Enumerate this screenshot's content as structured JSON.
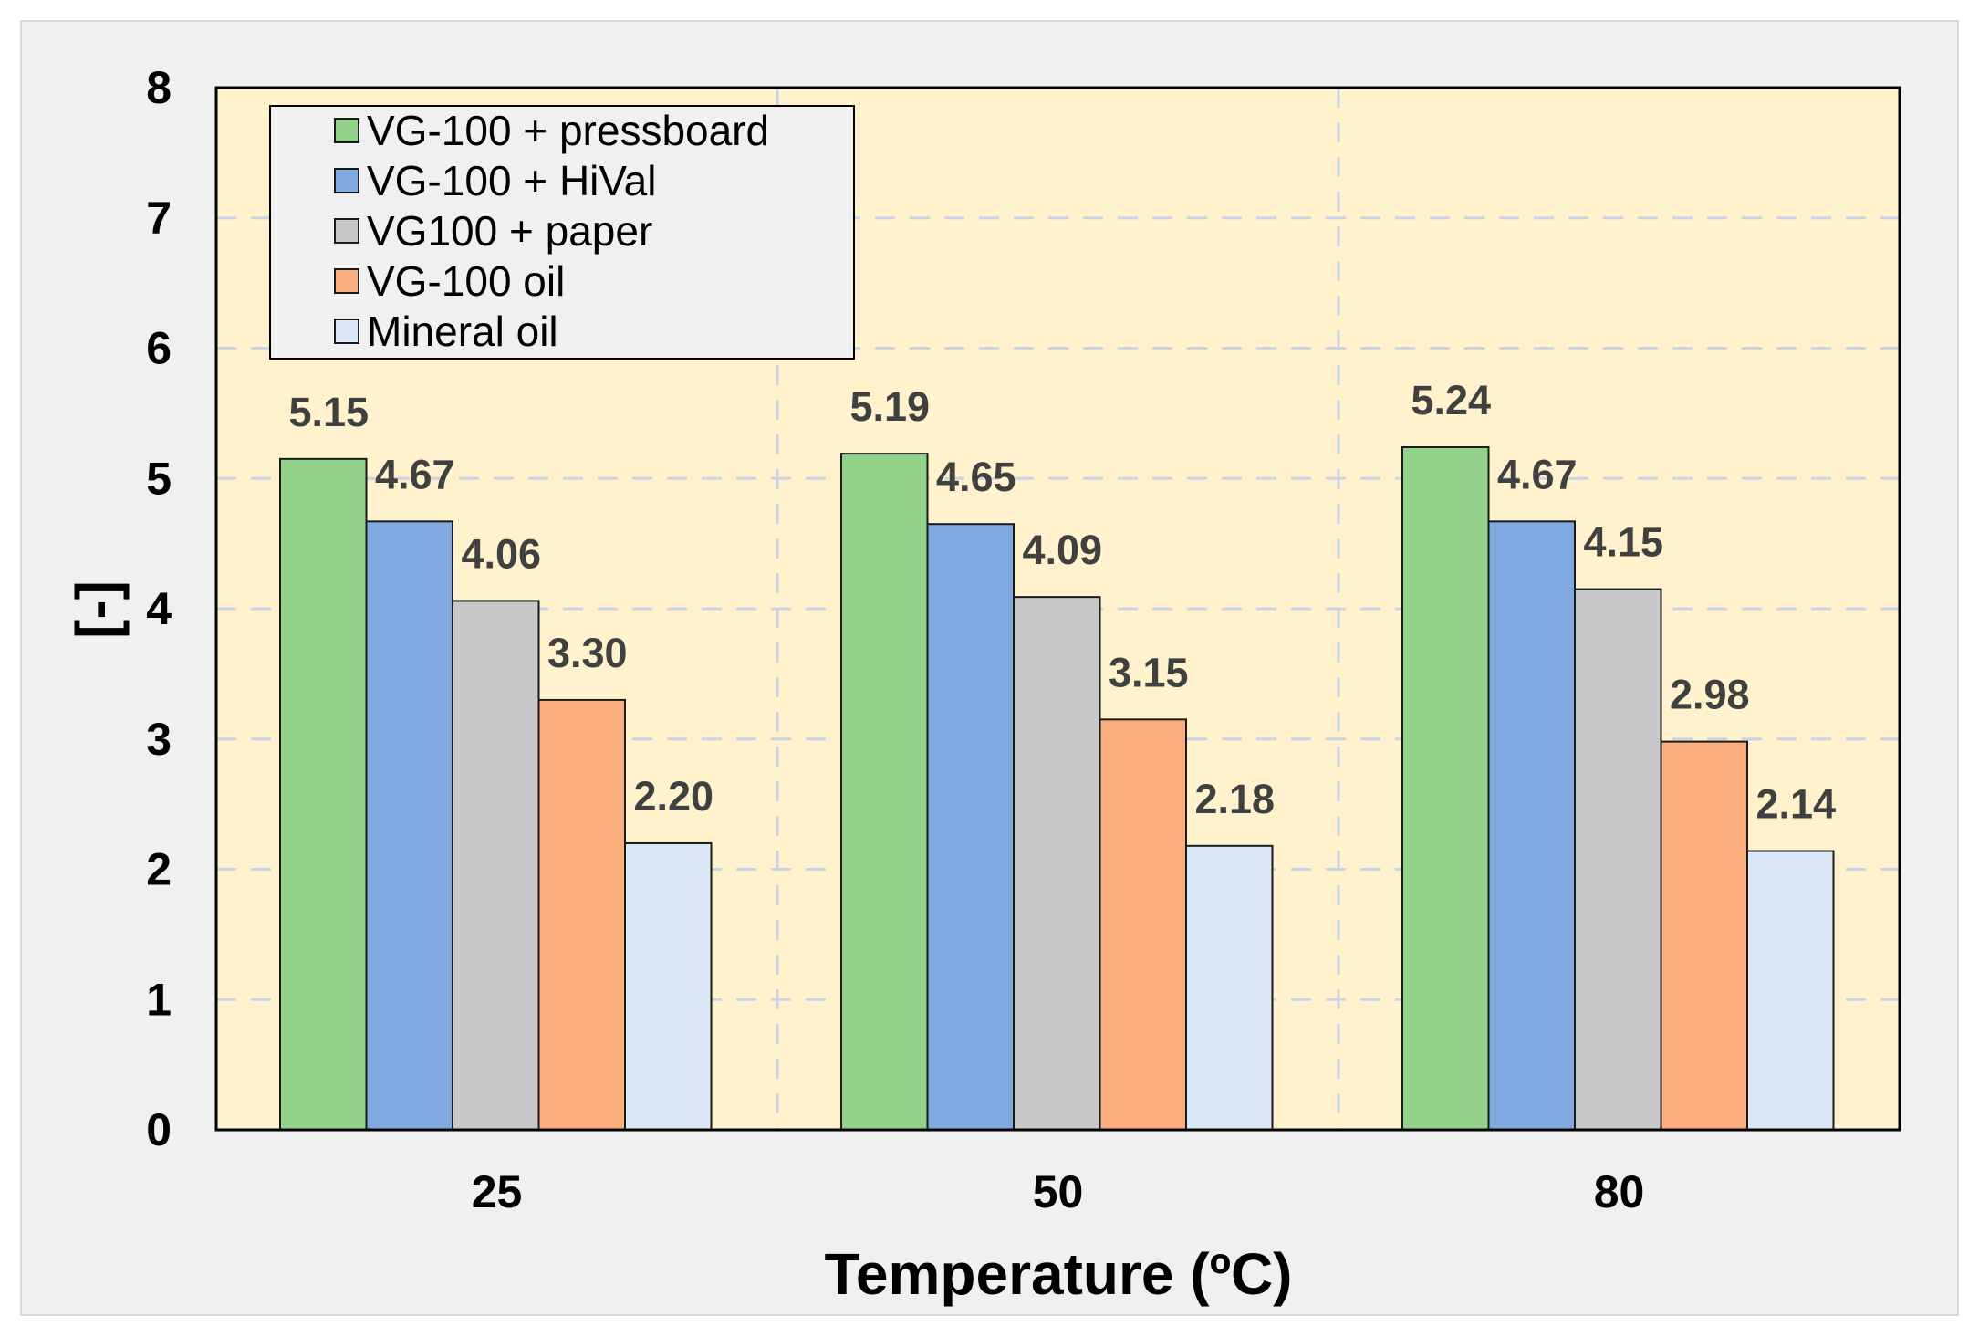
{
  "chart_data": {
    "type": "bar",
    "title": "",
    "xlabel": "Temperature (ºC)",
    "ylabel": "[-]",
    "ylim": [
      0,
      8
    ],
    "yticks": [
      0,
      1,
      2,
      3,
      4,
      5,
      6,
      7,
      8
    ],
    "grid": true,
    "legend_position": "top-left",
    "categories": [
      "25",
      "50",
      "80"
    ],
    "series": [
      {
        "name": "VG-100 + pressboard",
        "color": "#92d28a",
        "values": [
          5.15,
          5.19,
          5.24
        ],
        "labels": [
          "5.15",
          "5.19",
          "5.24"
        ]
      },
      {
        "name": "VG-100 + HiVal",
        "color": "#7fa9df",
        "values": [
          4.67,
          4.65,
          4.67
        ],
        "labels": [
          "4.67",
          "4.65",
          "4.67"
        ]
      },
      {
        "name": "VG100 + paper",
        "color": "#c8c8c8",
        "values": [
          4.06,
          4.09,
          4.15
        ],
        "labels": [
          "4.06",
          "4.09",
          "4.15"
        ]
      },
      {
        "name": "VG-100 oil",
        "color": "#fbae7d",
        "values": [
          3.3,
          3.15,
          2.98
        ],
        "labels": [
          "3.30",
          "3.15",
          "2.98"
        ]
      },
      {
        "name": "Mineral oil",
        "color": "#dbe9f6",
        "values": [
          2.2,
          2.18,
          2.14
        ],
        "labels": [
          "2.20",
          "2.18",
          "2.14"
        ]
      }
    ],
    "plot_background": "#fff2cc"
  }
}
